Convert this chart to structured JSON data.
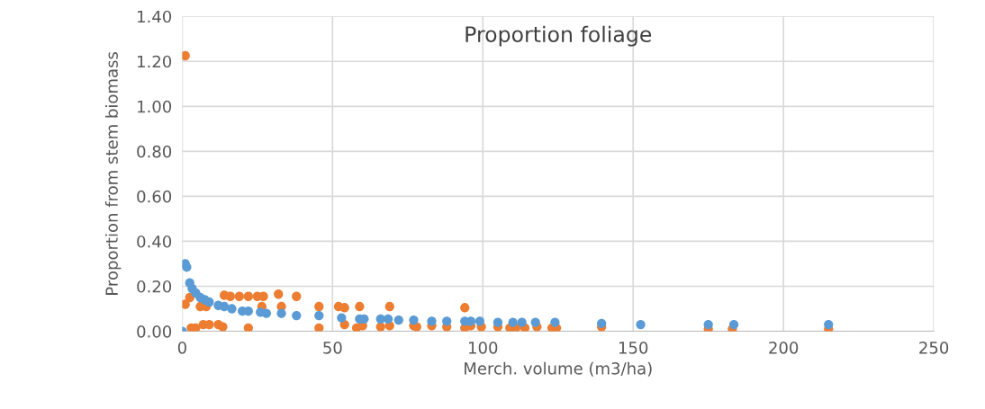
{
  "chart_data": {
    "type": "scatter",
    "title": "Proportion foliage",
    "xlabel": "Merch. volume (m3/ha)",
    "ylabel": "Proportion from stem biomass",
    "xlim": [
      0,
      250
    ],
    "xticks": [
      0,
      50,
      100,
      150,
      200,
      250
    ],
    "ylim": [
      0,
      1.4
    ],
    "yticks": [
      {
        "value": 0,
        "label": "0.00"
      },
      {
        "value": 0.2,
        "label": "0.20"
      },
      {
        "value": 0.4,
        "label": "0.40"
      },
      {
        "value": 0.6,
        "label": "0.60"
      },
      {
        "value": 0.8,
        "label": "0.80"
      },
      {
        "value": 1.0,
        "label": "1.00"
      },
      {
        "value": 1.2,
        "label": "1.20"
      },
      {
        "value": 1.4,
        "label": "1.40"
      }
    ],
    "grid": true,
    "marker": "circle",
    "legend": false,
    "series": [
      {
        "color": "#ed7d31",
        "x": [
          1,
          1,
          2.5,
          3,
          4.5,
          6,
          8,
          7,
          9,
          12,
          13.5,
          14,
          16,
          19,
          22,
          22,
          25,
          27,
          26.5,
          32,
          33,
          38,
          45.5,
          45.5,
          52,
          54,
          54,
          59,
          60,
          69,
          69,
          58,
          66,
          77,
          78,
          83,
          88,
          94,
          94,
          96,
          99.5,
          105,
          109,
          111,
          114,
          118,
          123,
          124.5,
          139.5,
          175,
          183,
          215
        ],
        "values": [
          1.225,
          0.12,
          0.15,
          0.015,
          0.015,
          0.11,
          0.11,
          0.03,
          0.03,
          0.03,
          0.02,
          0.16,
          0.155,
          0.155,
          0.155,
          0.015,
          0.155,
          0.155,
          0.11,
          0.165,
          0.11,
          0.155,
          0.11,
          0.015,
          0.11,
          0.105,
          0.03,
          0.11,
          0.025,
          0.11,
          0.025,
          0.015,
          0.02,
          0.025,
          0.02,
          0.025,
          0.02,
          0.105,
          0.015,
          0.025,
          0.02,
          0.02,
          0.015,
          0.015,
          0.015,
          0.02,
          0.015,
          0.015,
          0.02,
          0.01,
          0.01,
          0.01
        ]
      },
      {
        "color": "#5b9bd5",
        "x": [
          0,
          1,
          1.5,
          2.5,
          3.3,
          4.5,
          6,
          7.5,
          9,
          12,
          14,
          16.5,
          20,
          22,
          26,
          28,
          33,
          38,
          45.5,
          53,
          59,
          60.5,
          66,
          68.5,
          72,
          77,
          83,
          88,
          94,
          96,
          99,
          105,
          110,
          113,
          117.5,
          124,
          139.5,
          152.5,
          175,
          183.5,
          215
        ],
        "values": [
          0,
          0.3,
          0.285,
          0.215,
          0.19,
          0.17,
          0.15,
          0.14,
          0.13,
          0.115,
          0.11,
          0.1,
          0.09,
          0.09,
          0.085,
          0.08,
          0.08,
          0.07,
          0.07,
          0.06,
          0.055,
          0.055,
          0.055,
          0.055,
          0.05,
          0.05,
          0.045,
          0.045,
          0.045,
          0.045,
          0.045,
          0.04,
          0.04,
          0.04,
          0.04,
          0.04,
          0.035,
          0.03,
          0.03,
          0.03,
          0.03
        ]
      }
    ]
  }
}
